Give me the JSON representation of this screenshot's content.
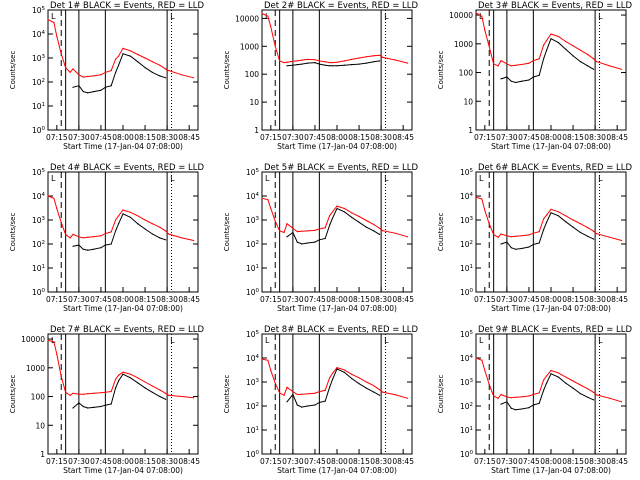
{
  "figure": {
    "xtick_labels": [
      "07:15",
      "07:30",
      "07:45",
      "08:00",
      "08:15",
      "08:30",
      "08:45"
    ],
    "xtick_hours": [
      7.25,
      7.5,
      7.75,
      8.0,
      8.25,
      8.5,
      8.75
    ],
    "xlim_hours": [
      7.15,
      8.85
    ],
    "xlabel": "Start Time (17-Jan-04 07:08:00)",
    "ylabel": "Counts/sec",
    "colors": {
      "events": "#000000",
      "lld": "#ff0000"
    },
    "markers": {
      "solid_vertical_hours": [
        7.35,
        7.5,
        7.8,
        8.5
      ],
      "dashed_vertical_hours": [
        7.3
      ],
      "dotted_vertical_hours": [
        8.55
      ],
      "corner_flag": "L"
    }
  },
  "chart_data": [
    {
      "type": "line",
      "title": "Det 1# BLACK = Events, RED = LLD",
      "yscale": "log",
      "ylim": [
        1,
        100000
      ],
      "ytick_labels": [
        "10^0",
        "10^1",
        "10^2",
        "10^3",
        "10^4",
        "10^5"
      ],
      "yticks": [
        1,
        10,
        100,
        1000,
        10000,
        100000
      ],
      "x": [
        "07:09",
        "07:13",
        "07:15",
        "07:18",
        "07:21",
        "07:24",
        "07:26",
        "07:30",
        "07:33",
        "07:36",
        "07:40",
        "07:45",
        "07:48",
        "07:52",
        "07:55",
        "07:57",
        "08:00",
        "08:05",
        "08:10",
        "08:15",
        "08:20",
        "08:25",
        "08:29",
        "08:30",
        "08:31",
        "08:40",
        "08:48"
      ],
      "series": [
        {
          "name": "Events",
          "values": [
            null,
            null,
            null,
            null,
            null,
            null,
            60,
            70,
            40,
            35,
            40,
            45,
            60,
            70,
            250,
            500,
            1500,
            1200,
            700,
            400,
            250,
            180,
            150,
            null,
            null,
            null,
            null
          ]
        },
        {
          "name": "LLD",
          "values": [
            40000,
            30000,
            8000,
            1500,
            400,
            250,
            350,
            200,
            160,
            170,
            180,
            200,
            250,
            300,
            900,
            1200,
            2500,
            2000,
            1400,
            1000,
            700,
            500,
            350,
            300,
            300,
            200,
            150
          ]
        }
      ]
    },
    {
      "type": "line",
      "title": "Det 2# BLACK = Events, RED = LLD",
      "yscale": "log",
      "ylim": [
        1,
        20000
      ],
      "ytick_labels": [
        "1",
        "10",
        "100",
        "1000",
        "10000"
      ],
      "yticks": [
        1,
        10,
        100,
        1000,
        10000
      ],
      "x": [
        "07:09",
        "07:13",
        "07:15",
        "07:18",
        "07:21",
        "07:24",
        "07:26",
        "07:30",
        "07:33",
        "07:36",
        "07:40",
        "07:45",
        "07:48",
        "07:52",
        "07:55",
        "07:57",
        "08:00",
        "08:05",
        "08:10",
        "08:15",
        "08:20",
        "08:25",
        "08:29",
        "08:30",
        "08:31",
        "08:40",
        "08:48"
      ],
      "series": [
        {
          "name": "Events",
          "values": [
            null,
            null,
            null,
            null,
            null,
            null,
            200,
            210,
            220,
            230,
            250,
            260,
            230,
            210,
            200,
            200,
            200,
            210,
            220,
            230,
            250,
            280,
            300,
            null,
            null,
            null,
            null
          ]
        },
        {
          "name": "LLD",
          "values": [
            15000,
            12000,
            5000,
            1000,
            300,
            260,
            270,
            290,
            300,
            320,
            340,
            330,
            300,
            280,
            260,
            260,
            270,
            300,
            340,
            380,
            420,
            460,
            480,
            450,
            400,
            320,
            250
          ]
        }
      ]
    },
    {
      "type": "line",
      "title": "Det 3# BLACK = Events, RED = LLD",
      "yscale": "log",
      "ylim": [
        1,
        15000
      ],
      "ytick_labels": [
        "1",
        "10",
        "100",
        "1000",
        "10000"
      ],
      "yticks": [
        1,
        10,
        100,
        1000,
        10000
      ],
      "x": [
        "07:09",
        "07:13",
        "07:15",
        "07:18",
        "07:21",
        "07:24",
        "07:26",
        "07:30",
        "07:33",
        "07:36",
        "07:40",
        "07:45",
        "07:48",
        "07:52",
        "07:55",
        "07:57",
        "08:00",
        "08:05",
        "08:10",
        "08:15",
        "08:20",
        "08:25",
        "08:29",
        "08:30",
        "08:31",
        "08:40",
        "08:48"
      ],
      "series": [
        {
          "name": "Events",
          "values": [
            null,
            null,
            null,
            null,
            null,
            null,
            60,
            70,
            50,
            45,
            50,
            55,
            70,
            80,
            300,
            600,
            1500,
            1100,
            650,
            380,
            240,
            170,
            130,
            null,
            null,
            null,
            null
          ]
        },
        {
          "name": "LLD",
          "values": [
            12000,
            9000,
            3000,
            800,
            200,
            170,
            260,
            200,
            170,
            180,
            190,
            210,
            260,
            300,
            900,
            1300,
            2200,
            1800,
            1200,
            850,
            600,
            420,
            300,
            260,
            240,
            170,
            130
          ]
        }
      ]
    },
    {
      "type": "line",
      "title": "Det 4# BLACK = Events, RED = LLD",
      "yscale": "log",
      "ylim": [
        1,
        100000
      ],
      "ytick_labels": [
        "10^0",
        "10^1",
        "10^2",
        "10^3",
        "10^4",
        "10^5"
      ],
      "yticks": [
        1,
        10,
        100,
        1000,
        10000,
        100000
      ],
      "x": [
        "07:09",
        "07:13",
        "07:15",
        "07:18",
        "07:21",
        "07:24",
        "07:26",
        "07:30",
        "07:33",
        "07:36",
        "07:40",
        "07:45",
        "07:48",
        "07:52",
        "07:55",
        "07:57",
        "08:00",
        "08:05",
        "08:10",
        "08:15",
        "08:20",
        "08:25",
        "08:29",
        "08:30",
        "08:31",
        "08:40",
        "08:48"
      ],
      "series": [
        {
          "name": "Events",
          "values": [
            null,
            null,
            null,
            null,
            null,
            null,
            80,
            90,
            60,
            55,
            60,
            70,
            90,
            100,
            350,
            700,
            1800,
            1300,
            700,
            420,
            260,
            180,
            150,
            null,
            null,
            null,
            null
          ]
        },
        {
          "name": "LLD",
          "values": [
            10000,
            8000,
            3000,
            800,
            250,
            180,
            250,
            200,
            180,
            190,
            200,
            220,
            270,
            320,
            1000,
            1500,
            2600,
            2100,
            1500,
            1000,
            700,
            500,
            350,
            300,
            260,
            180,
            140
          ]
        }
      ]
    },
    {
      "type": "line",
      "title": "Det 5# BLACK = Events, RED = LLD",
      "yscale": "log",
      "ylim": [
        1,
        100000
      ],
      "ytick_labels": [
        "10^0",
        "10^1",
        "10^2",
        "10^3",
        "10^4",
        "10^5"
      ],
      "yticks": [
        1,
        10,
        100,
        1000,
        10000,
        100000
      ],
      "x": [
        "07:09",
        "07:13",
        "07:15",
        "07:18",
        "07:21",
        "07:24",
        "07:26",
        "07:30",
        "07:33",
        "07:36",
        "07:40",
        "07:45",
        "07:48",
        "07:52",
        "07:55",
        "07:57",
        "08:00",
        "08:05",
        "08:10",
        "08:15",
        "08:20",
        "08:25",
        "08:29",
        "08:30",
        "08:31",
        "08:40",
        "08:48"
      ],
      "series": [
        {
          "name": "Events",
          "values": [
            null,
            null,
            null,
            null,
            null,
            null,
            200,
            300,
            120,
            100,
            110,
            120,
            150,
            170,
            600,
            1200,
            3000,
            2200,
            1300,
            800,
            500,
            350,
            250,
            null,
            null,
            null,
            null
          ]
        },
        {
          "name": "LLD",
          "values": [
            8000,
            7000,
            3000,
            900,
            350,
            300,
            700,
            450,
            330,
            340,
            350,
            370,
            420,
            480,
            1500,
            2200,
            3800,
            3000,
            2000,
            1400,
            950,
            650,
            450,
            400,
            360,
            280,
            200
          ]
        }
      ]
    },
    {
      "type": "line",
      "title": "Det 6# BLACK = Events, RED = LLD",
      "yscale": "log",
      "ylim": [
        1,
        100000
      ],
      "ytick_labels": [
        "10^0",
        "10^1",
        "10^2",
        "10^3",
        "10^4",
        "10^5"
      ],
      "yticks": [
        1,
        10,
        100,
        1000,
        10000,
        100000
      ],
      "x": [
        "07:09",
        "07:13",
        "07:15",
        "07:18",
        "07:21",
        "07:24",
        "07:26",
        "07:30",
        "07:33",
        "07:36",
        "07:40",
        "07:45",
        "07:48",
        "07:52",
        "07:55",
        "07:57",
        "08:00",
        "08:05",
        "08:10",
        "08:15",
        "08:20",
        "08:25",
        "08:29",
        "08:30",
        "08:31",
        "08:40",
        "08:48"
      ],
      "series": [
        {
          "name": "Events",
          "values": [
            null,
            null,
            null,
            null,
            null,
            null,
            100,
            120,
            70,
            60,
            65,
            75,
            95,
            110,
            400,
            800,
            2000,
            1500,
            850,
            500,
            300,
            210,
            160,
            null,
            null,
            null,
            null
          ]
        },
        {
          "name": "LLD",
          "values": [
            9000,
            7500,
            2500,
            700,
            250,
            190,
            260,
            220,
            200,
            210,
            220,
            240,
            280,
            330,
            1100,
            1600,
            2800,
            2200,
            1500,
            1000,
            700,
            480,
            340,
            300,
            270,
            190,
            140
          ]
        }
      ]
    },
    {
      "type": "line",
      "title": "Det 7# BLACK = Events, RED = LLD",
      "yscale": "log",
      "ylim": [
        1,
        15000
      ],
      "ytick_labels": [
        "1",
        "10",
        "100",
        "1000",
        "10000"
      ],
      "yticks": [
        1,
        10,
        100,
        1000,
        10000
      ],
      "x": [
        "07:09",
        "07:13",
        "07:15",
        "07:18",
        "07:21",
        "07:24",
        "07:26",
        "07:30",
        "07:33",
        "07:36",
        "07:40",
        "07:45",
        "07:48",
        "07:52",
        "07:55",
        "07:57",
        "08:00",
        "08:05",
        "08:10",
        "08:15",
        "08:20",
        "08:25",
        "08:29",
        "08:30",
        "08:31",
        "08:40",
        "08:48"
      ],
      "series": [
        {
          "name": "Events",
          "values": [
            null,
            null,
            null,
            null,
            null,
            null,
            40,
            60,
            45,
            40,
            42,
            45,
            50,
            55,
            200,
            350,
            600,
            450,
            300,
            200,
            140,
            100,
            80,
            null,
            null,
            null,
            null
          ]
        },
        {
          "name": "LLD",
          "values": [
            9000,
            8000,
            3000,
            500,
            140,
            110,
            130,
            120,
            120,
            125,
            130,
            135,
            140,
            150,
            400,
            550,
            700,
            600,
            450,
            320,
            230,
            170,
            130,
            120,
            110,
            100,
            90
          ]
        }
      ]
    },
    {
      "type": "line",
      "title": "Det 8# BLACK = Events, RED = LLD",
      "yscale": "log",
      "ylim": [
        1,
        100000
      ],
      "ytick_labels": [
        "10^0",
        "10^1",
        "10^2",
        "10^3",
        "10^4",
        "10^5"
      ],
      "yticks": [
        1,
        10,
        100,
        1000,
        10000,
        100000
      ],
      "x": [
        "07:09",
        "07:13",
        "07:15",
        "07:18",
        "07:21",
        "07:24",
        "07:26",
        "07:30",
        "07:33",
        "07:36",
        "07:40",
        "07:45",
        "07:48",
        "07:52",
        "07:55",
        "07:57",
        "08:00",
        "08:05",
        "08:10",
        "08:15",
        "08:20",
        "08:25",
        "08:29",
        "08:30",
        "08:31",
        "08:40",
        "08:48"
      ],
      "series": [
        {
          "name": "Events",
          "values": [
            null,
            null,
            null,
            null,
            null,
            null,
            150,
            300,
            110,
            90,
            100,
            110,
            140,
            160,
            600,
            1300,
            3500,
            2500,
            1400,
            850,
            550,
            380,
            280,
            null,
            null,
            null,
            null
          ]
        },
        {
          "name": "LLD",
          "values": [
            9000,
            8000,
            3000,
            900,
            350,
            280,
            600,
            400,
            300,
            310,
            320,
            340,
            400,
            450,
            1500,
            2300,
            4000,
            3200,
            2100,
            1500,
            1000,
            700,
            480,
            420,
            380,
            290,
            210
          ]
        }
      ]
    },
    {
      "type": "line",
      "title": "Det 9# BLACK = Events, RED = LLD",
      "yscale": "log",
      "ylim": [
        1,
        100000
      ],
      "ytick_labels": [
        "10^0",
        "10^1",
        "10^2",
        "10^3",
        "10^4",
        "10^5"
      ],
      "yticks": [
        1,
        10,
        100,
        1000,
        10000,
        100000
      ],
      "x": [
        "07:09",
        "07:13",
        "07:15",
        "07:18",
        "07:21",
        "07:24",
        "07:26",
        "07:30",
        "07:33",
        "07:36",
        "07:40",
        "07:45",
        "07:48",
        "07:52",
        "07:55",
        "07:57",
        "08:00",
        "08:05",
        "08:10",
        "08:15",
        "08:20",
        "08:25",
        "08:29",
        "08:30",
        "08:31",
        "08:40",
        "08:48"
      ],
      "series": [
        {
          "name": "Events",
          "values": [
            null,
            null,
            null,
            null,
            null,
            null,
            120,
            150,
            80,
            70,
            75,
            85,
            110,
            130,
            450,
            900,
            2200,
            1600,
            900,
            550,
            330,
            230,
            180,
            null,
            null,
            null,
            null
          ]
        },
        {
          "name": "LLD",
          "values": [
            10000,
            8000,
            3000,
            800,
            260,
            210,
            300,
            240,
            220,
            230,
            240,
            260,
            300,
            350,
            1200,
            1800,
            3000,
            2400,
            1600,
            1100,
            750,
            520,
            370,
            330,
            290,
            210,
            150
          ]
        }
      ]
    }
  ]
}
